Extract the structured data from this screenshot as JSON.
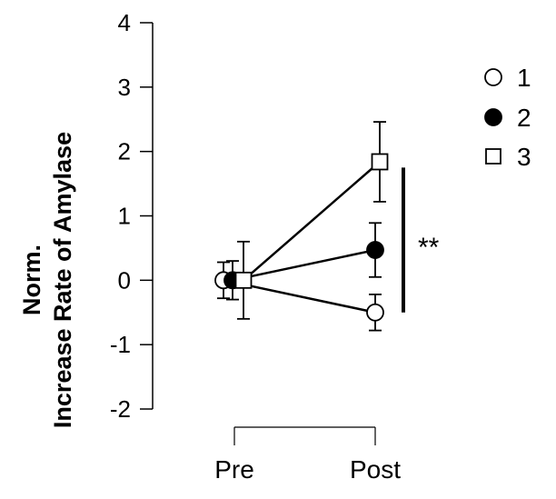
{
  "chart_data": {
    "type": "line",
    "categories": [
      "Pre",
      "Post"
    ],
    "ylabel_lines": [
      "Norm.",
      "Increase Rate of Amylase"
    ],
    "xlabel": "",
    "ylim": [
      -2,
      4
    ],
    "yticks": [
      -2,
      -1,
      0,
      1,
      2,
      3,
      4
    ],
    "ytick_labels": [
      "-2",
      "-1",
      "0",
      "1",
      "2",
      "3",
      "4"
    ],
    "grid": false,
    "legend_position": "right",
    "series": [
      {
        "name": "1",
        "marker": "circle-open",
        "values": [
          0.0,
          -0.5
        ],
        "errors": [
          0.28,
          0.28
        ]
      },
      {
        "name": "2",
        "marker": "circle-filled",
        "values": [
          0.0,
          0.47
        ],
        "errors": [
          0.3,
          0.42
        ]
      },
      {
        "name": "3",
        "marker": "square-open",
        "values": [
          0.0,
          1.84
        ],
        "errors": [
          0.6,
          0.62
        ]
      }
    ],
    "annotation": {
      "text": "**",
      "type": "significance-bar",
      "y_range": [
        -0.5,
        1.75
      ]
    }
  }
}
